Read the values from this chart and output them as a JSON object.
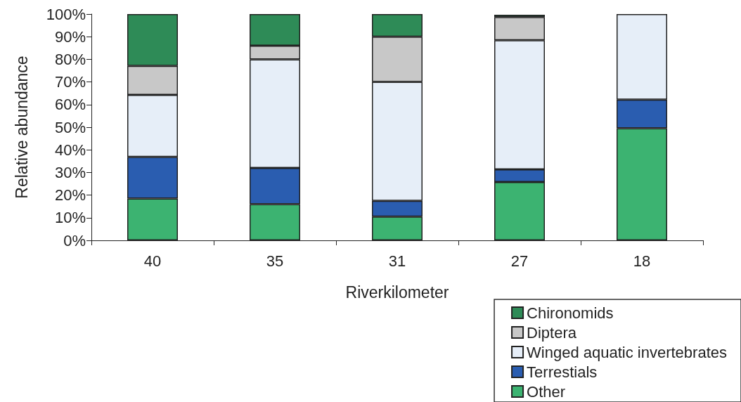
{
  "chart_data": {
    "type": "bar",
    "stacked": true,
    "xlabel": "Riverkilometer",
    "ylabel": "Relative abundance",
    "categories": [
      "40",
      "35",
      "31",
      "27",
      "18"
    ],
    "series": [
      {
        "name": "Other",
        "color": "#3cb371",
        "values": [
          18.5,
          16,
          10.5,
          25.8,
          49.5
        ]
      },
      {
        "name": "Terrestials",
        "color": "#2a5db0",
        "values": [
          18.4,
          16,
          7,
          5.6,
          12.7
        ]
      },
      {
        "name": "Winged aquatic invertebrates",
        "color": "#e6eef8",
        "values": [
          27.4,
          48,
          52.5,
          57,
          37.8
        ]
      },
      {
        "name": "Diptera",
        "color": "#c8c8c8",
        "values": [
          12.8,
          6,
          20,
          10.3,
          null
        ]
      },
      {
        "name": "Chironomids",
        "color": "#2e8b57",
        "values": [
          22.9,
          14,
          10,
          1,
          null
        ]
      }
    ],
    "ylim": [
      0,
      100
    ],
    "yticks": [
      {
        "value": 0,
        "label": "0%"
      },
      {
        "value": 10,
        "label": "10%"
      },
      {
        "value": 20,
        "label": "20%"
      },
      {
        "value": 30,
        "label": "30%"
      },
      {
        "value": 40,
        "label": "40%"
      },
      {
        "value": 50,
        "label": "50%"
      },
      {
        "value": 60,
        "label": "60%"
      },
      {
        "value": 70,
        "label": "70%"
      },
      {
        "value": 80,
        "label": "80%"
      },
      {
        "value": 90,
        "label": "90%"
      },
      {
        "value": 100,
        "label": "100%"
      }
    ],
    "grid": false,
    "legend": "bottom right"
  }
}
